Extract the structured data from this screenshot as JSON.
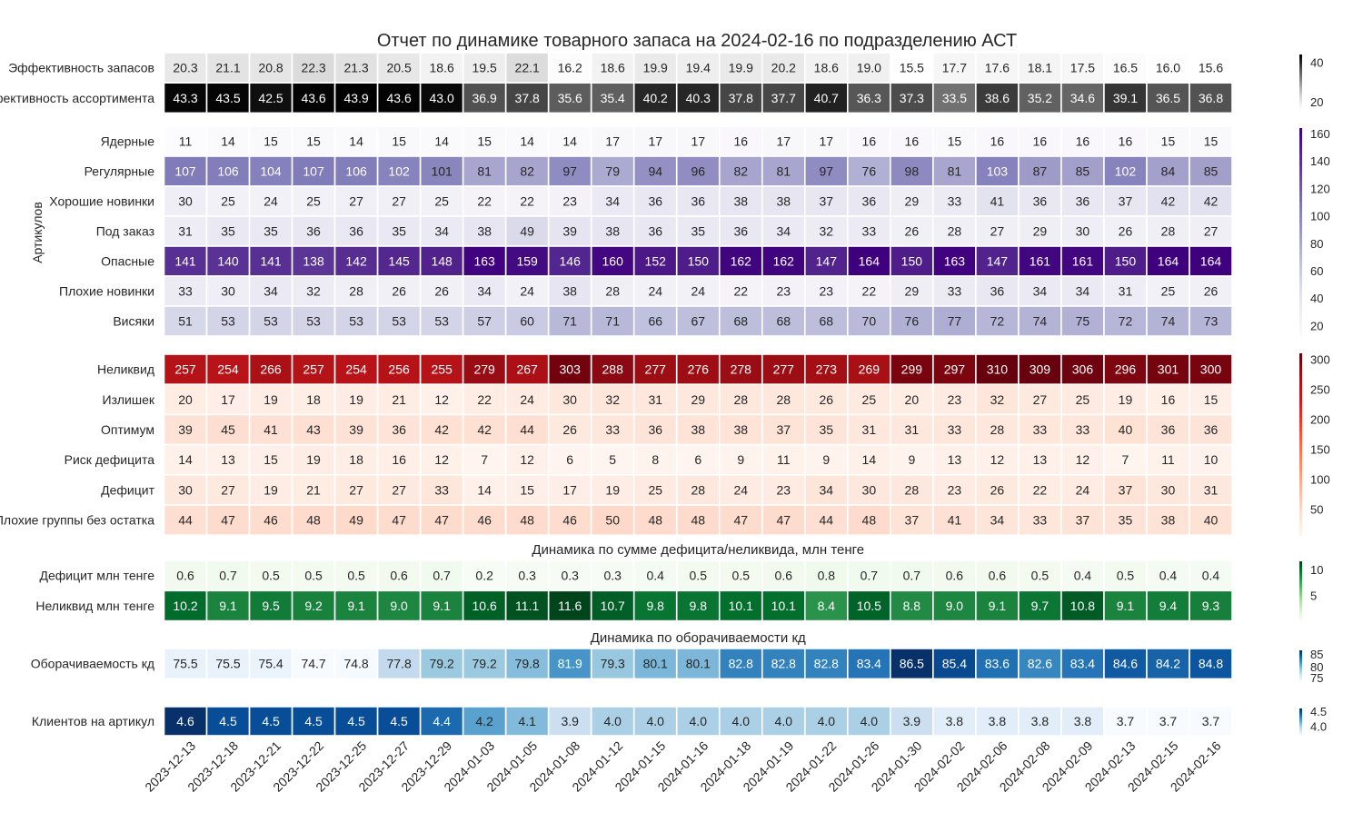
{
  "title": "Отчет по динамике товарного запаса на 2024-02-16 по подразделению АСТ",
  "dates": [
    "2023-12-13",
    "2023-12-18",
    "2023-12-21",
    "2023-12-22",
    "2023-12-25",
    "2023-12-27",
    "2023-12-29",
    "2024-01-03",
    "2024-01-05",
    "2024-01-08",
    "2024-01-12",
    "2024-01-15",
    "2024-01-16",
    "2024-01-18",
    "2024-01-19",
    "2024-01-22",
    "2024-01-26",
    "2024-01-30",
    "2024-02-02",
    "2024-02-06",
    "2024-02-08",
    "2024-02-09",
    "2024-02-13",
    "2024-02-15",
    "2024-02-16"
  ],
  "chart_data": [
    {
      "type": "heatmap",
      "colormap": "Greys",
      "colorbar_ticks": [
        20,
        40
      ],
      "rows": [
        {
          "label": "Эффективность запасов",
          "values": [
            "20.3",
            "21.1",
            "20.8",
            "22.3",
            "21.3",
            "20.5",
            "18.6",
            "19.5",
            "22.1",
            "16.2",
            "18.6",
            "19.9",
            "19.4",
            "19.9",
            "20.2",
            "18.6",
            "19.0",
            "15.5",
            "17.7",
            "17.6",
            "18.1",
            "17.5",
            "16.5",
            "16.0",
            "15.6"
          ]
        },
        {
          "label": "Эффективность ассортимента",
          "values": [
            "43.3",
            "43.5",
            "42.5",
            "43.6",
            "43.9",
            "43.6",
            "43.0",
            "36.9",
            "37.8",
            "35.6",
            "35.4",
            "40.2",
            "40.3",
            "37.8",
            "37.7",
            "40.7",
            "36.3",
            "37.3",
            "33.5",
            "38.6",
            "35.2",
            "34.6",
            "39.1",
            "36.5",
            "36.8"
          ]
        }
      ]
    },
    {
      "type": "heatmap",
      "colormap": "Purples",
      "ylabel": "Артикулов",
      "colorbar_ticks": [
        20,
        40,
        60,
        80,
        100,
        120,
        140,
        160
      ],
      "rows": [
        {
          "label": "Ядерные",
          "values": [
            "11",
            "14",
            "15",
            "15",
            "14",
            "15",
            "14",
            "15",
            "14",
            "14",
            "17",
            "17",
            "17",
            "16",
            "17",
            "17",
            "16",
            "16",
            "15",
            "16",
            "16",
            "16",
            "16",
            "15",
            "15"
          ]
        },
        {
          "label": "Регулярные",
          "values": [
            "107",
            "106",
            "104",
            "107",
            "106",
            "102",
            "101",
            "81",
            "82",
            "97",
            "79",
            "94",
            "96",
            "82",
            "81",
            "97",
            "76",
            "98",
            "81",
            "103",
            "87",
            "85",
            "102",
            "84",
            "85"
          ]
        },
        {
          "label": "Хорошие новинки",
          "values": [
            "30",
            "25",
            "24",
            "25",
            "27",
            "27",
            "25",
            "22",
            "22",
            "23",
            "34",
            "36",
            "36",
            "38",
            "38",
            "37",
            "36",
            "29",
            "33",
            "41",
            "36",
            "36",
            "37",
            "42",
            "42"
          ]
        },
        {
          "label": "Под заказ",
          "values": [
            "31",
            "35",
            "35",
            "36",
            "36",
            "35",
            "34",
            "38",
            "49",
            "39",
            "38",
            "36",
            "35",
            "36",
            "34",
            "32",
            "33",
            "26",
            "28",
            "27",
            "29",
            "30",
            "26",
            "28",
            "27"
          ]
        },
        {
          "label": "Опасные",
          "values": [
            "141",
            "140",
            "141",
            "138",
            "142",
            "145",
            "148",
            "163",
            "159",
            "146",
            "160",
            "152",
            "150",
            "162",
            "162",
            "147",
            "164",
            "150",
            "163",
            "147",
            "161",
            "161",
            "150",
            "164",
            "164"
          ]
        },
        {
          "label": "Плохие новинки",
          "values": [
            "33",
            "30",
            "34",
            "32",
            "28",
            "26",
            "26",
            "34",
            "24",
            "38",
            "28",
            "24",
            "24",
            "22",
            "23",
            "23",
            "22",
            "29",
            "33",
            "36",
            "34",
            "34",
            "31",
            "25",
            "26"
          ]
        },
        {
          "label": "Висяки",
          "values": [
            "51",
            "53",
            "53",
            "53",
            "53",
            "53",
            "53",
            "57",
            "60",
            "71",
            "71",
            "66",
            "67",
            "68",
            "68",
            "68",
            "70",
            "76",
            "77",
            "72",
            "74",
            "75",
            "72",
            "74",
            "73"
          ]
        }
      ]
    },
    {
      "type": "heatmap",
      "colormap": "Reds",
      "colorbar_ticks": [
        50,
        100,
        150,
        200,
        250,
        300
      ],
      "rows": [
        {
          "label": "Неликвид",
          "values": [
            "257",
            "254",
            "266",
            "257",
            "254",
            "256",
            "255",
            "279",
            "267",
            "303",
            "288",
            "277",
            "276",
            "278",
            "277",
            "273",
            "269",
            "299",
            "297",
            "310",
            "309",
            "306",
            "296",
            "301",
            "300"
          ]
        },
        {
          "label": "Излишек",
          "values": [
            "20",
            "17",
            "19",
            "18",
            "19",
            "21",
            "12",
            "22",
            "24",
            "30",
            "32",
            "31",
            "29",
            "28",
            "28",
            "26",
            "25",
            "20",
            "23",
            "32",
            "27",
            "25",
            "19",
            "16",
            "15"
          ]
        },
        {
          "label": "Оптимум",
          "values": [
            "39",
            "45",
            "41",
            "43",
            "39",
            "36",
            "42",
            "42",
            "44",
            "26",
            "33",
            "36",
            "38",
            "38",
            "37",
            "35",
            "31",
            "31",
            "33",
            "28",
            "33",
            "33",
            "40",
            "36",
            "36"
          ]
        },
        {
          "label": "Риск дефицита",
          "values": [
            "14",
            "13",
            "15",
            "19",
            "18",
            "16",
            "12",
            "7",
            "12",
            "6",
            "5",
            "8",
            "6",
            "9",
            "11",
            "9",
            "14",
            "9",
            "13",
            "12",
            "13",
            "12",
            "7",
            "11",
            "10"
          ]
        },
        {
          "label": "Дефицит",
          "values": [
            "30",
            "27",
            "19",
            "21",
            "27",
            "27",
            "33",
            "14",
            "15",
            "17",
            "19",
            "25",
            "28",
            "24",
            "23",
            "34",
            "30",
            "28",
            "23",
            "26",
            "22",
            "24",
            "37",
            "30",
            "31"
          ]
        },
        {
          "label": "Плохие группы без остатка",
          "values": [
            "44",
            "47",
            "46",
            "48",
            "49",
            "47",
            "47",
            "46",
            "48",
            "46",
            "50",
            "48",
            "48",
            "47",
            "47",
            "44",
            "48",
            "37",
            "41",
            "34",
            "33",
            "37",
            "35",
            "38",
            "40"
          ]
        }
      ]
    },
    {
      "type": "heatmap",
      "colormap": "Greens",
      "title": "Динамика по сумме дефицита/неликвида, млн тенге",
      "colorbar_ticks": [
        5,
        10
      ],
      "rows": [
        {
          "label": "Дефицит млн тенге",
          "values": [
            "0.6",
            "0.7",
            "0.5",
            "0.5",
            "0.5",
            "0.6",
            "0.7",
            "0.2",
            "0.3",
            "0.3",
            "0.3",
            "0.4",
            "0.5",
            "0.5",
            "0.6",
            "0.8",
            "0.7",
            "0.7",
            "0.6",
            "0.6",
            "0.5",
            "0.4",
            "0.5",
            "0.4",
            "0.4"
          ]
        },
        {
          "label": "Неликвид млн тенге",
          "values": [
            "10.2",
            "9.1",
            "9.5",
            "9.2",
            "9.1",
            "9.0",
            "9.1",
            "10.6",
            "11.1",
            "11.6",
            "10.7",
            "9.8",
            "9.8",
            "10.1",
            "10.1",
            "8.4",
            "10.5",
            "8.8",
            "9.0",
            "9.1",
            "9.7",
            "10.8",
            "9.1",
            "9.4",
            "9.3"
          ]
        }
      ]
    },
    {
      "type": "heatmap",
      "colormap": "Blues",
      "title": "Динамика по оборачиваемости кд",
      "colorbar_ticks": [
        75,
        80,
        85
      ],
      "rows": [
        {
          "label": "Оборачиваемость кд",
          "values": [
            "75.5",
            "75.5",
            "75.4",
            "74.7",
            "74.8",
            "77.8",
            "79.2",
            "79.2",
            "79.8",
            "81.9",
            "79.3",
            "80.1",
            "80.1",
            "82.8",
            "82.8",
            "82.8",
            "83.4",
            "86.5",
            "85.4",
            "83.6",
            "82.6",
            "83.4",
            "84.6",
            "84.2",
            "84.8"
          ]
        }
      ]
    },
    {
      "type": "heatmap",
      "colormap": "Blues",
      "colorbar_ticks": [
        "4.0",
        "4.5"
      ],
      "rows": [
        {
          "label": "Клиентов на артикул",
          "values": [
            "4.6",
            "4.5",
            "4.5",
            "4.5",
            "4.5",
            "4.5",
            "4.4",
            "4.2",
            "4.1",
            "3.9",
            "4.0",
            "4.0",
            "4.0",
            "4.0",
            "4.0",
            "4.0",
            "4.0",
            "3.9",
            "3.8",
            "3.8",
            "3.8",
            "3.8",
            "3.7",
            "3.7",
            "3.7"
          ]
        }
      ]
    }
  ]
}
